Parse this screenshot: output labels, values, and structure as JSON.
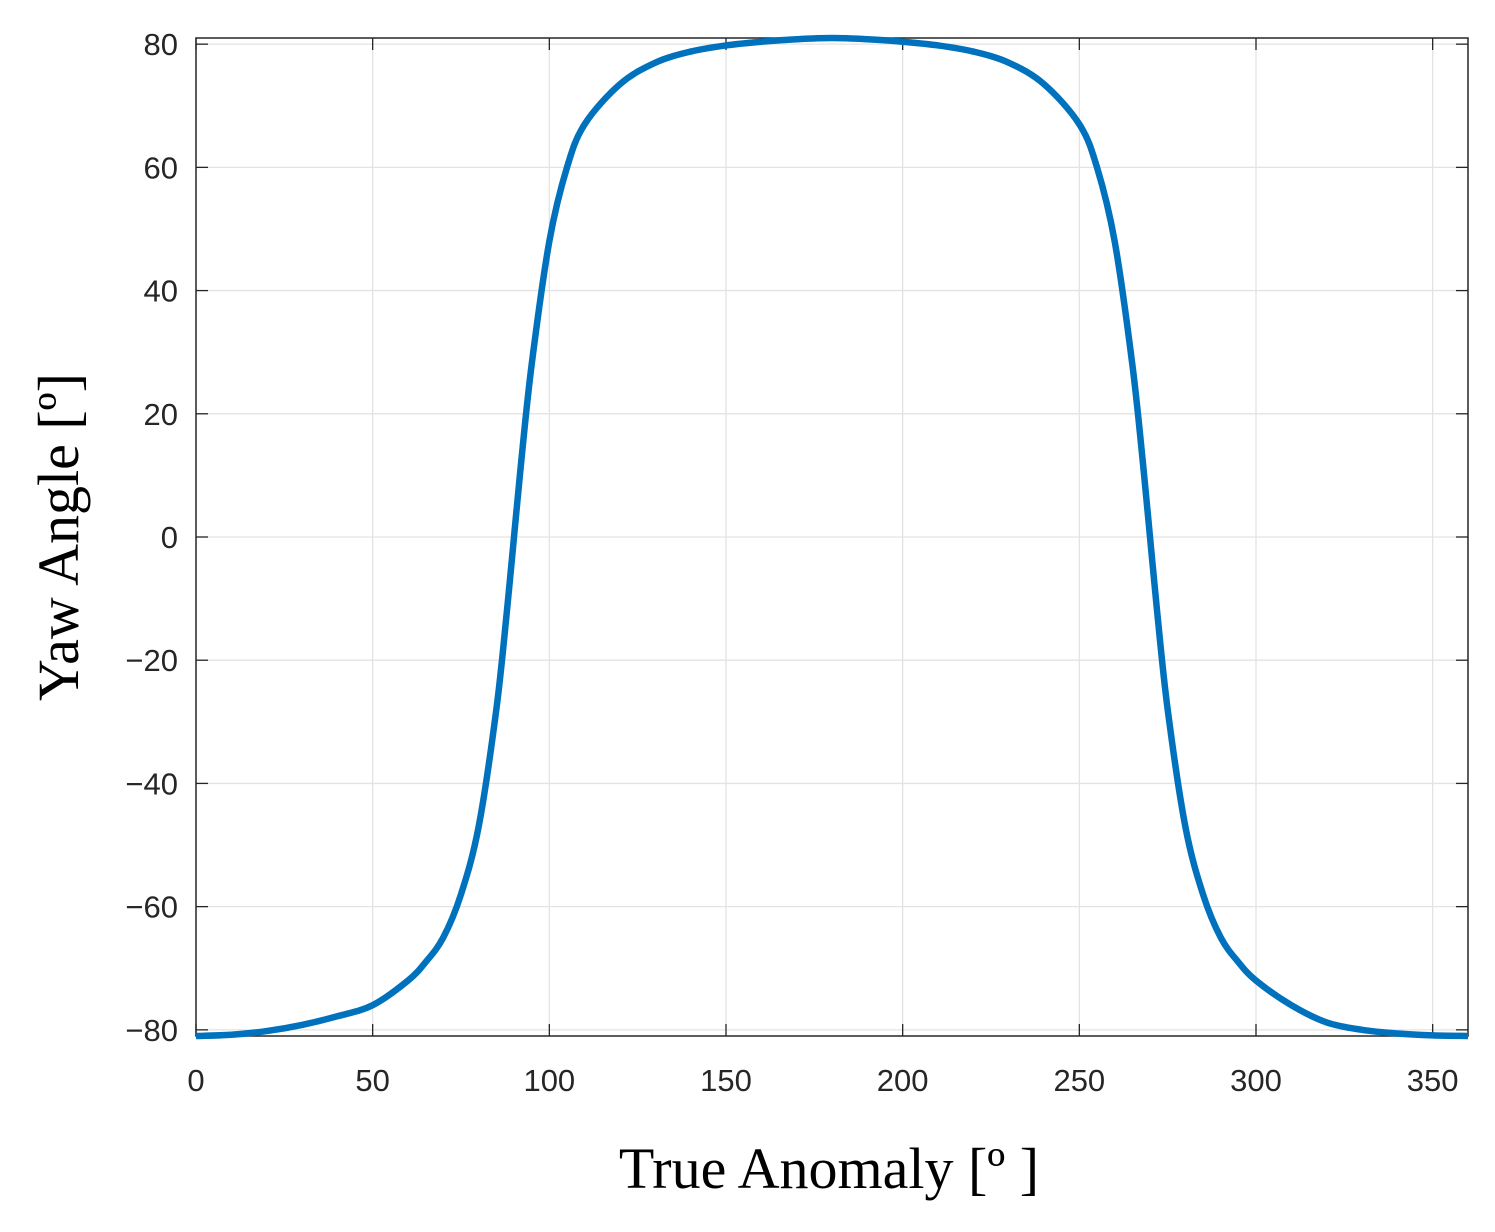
{
  "chart_data": {
    "type": "line",
    "xlabel": "True Anomaly [º ]",
    "ylabel": "Yaw Angle [º]",
    "xlim": [
      0,
      360
    ],
    "ylim": [
      -81,
      81
    ],
    "grid": true,
    "x_ticks": [
      0,
      50,
      100,
      150,
      200,
      250,
      300,
      350
    ],
    "y_ticks": [
      -80,
      -60,
      -40,
      -20,
      0,
      20,
      40,
      60,
      80
    ],
    "x_tick_labels": [
      "0",
      "50",
      "100",
      "150",
      "200",
      "250",
      "300",
      "350"
    ],
    "y_tick_labels": [
      "−80",
      "−60",
      "−40",
      "−20",
      "0",
      "20",
      "40",
      "60",
      "80"
    ],
    "series": [
      {
        "color": "#0072BD",
        "x": [
          0,
          10,
          20,
          30,
          40,
          50,
          60,
          65,
          70,
          75,
          80,
          85,
          88,
          90,
          92,
          95,
          100,
          105,
          110,
          120,
          130,
          140,
          150,
          160,
          170,
          180,
          190,
          200,
          210,
          220,
          230,
          240,
          250,
          255,
          260,
          265,
          268,
          270,
          272,
          275,
          280,
          285,
          290,
          295,
          300,
          310,
          320,
          330,
          340,
          350,
          360
        ],
        "y": [
          -81,
          -80.8,
          -80.2,
          -79.2,
          -77.8,
          -76,
          -72,
          -69,
          -65,
          -58,
          -47,
          -28,
          -12,
          0,
          12,
          28,
          48,
          60,
          67,
          73.5,
          77,
          78.8,
          79.8,
          80.4,
          80.8,
          81,
          80.8,
          80.4,
          79.8,
          78.8,
          77,
          73.5,
          67,
          60,
          48,
          28,
          12,
          0,
          -12,
          -28,
          -47,
          -58,
          -65,
          -69,
          -72,
          -76,
          -78.8,
          -80,
          -80.6,
          -80.9,
          -81
        ]
      }
    ]
  }
}
